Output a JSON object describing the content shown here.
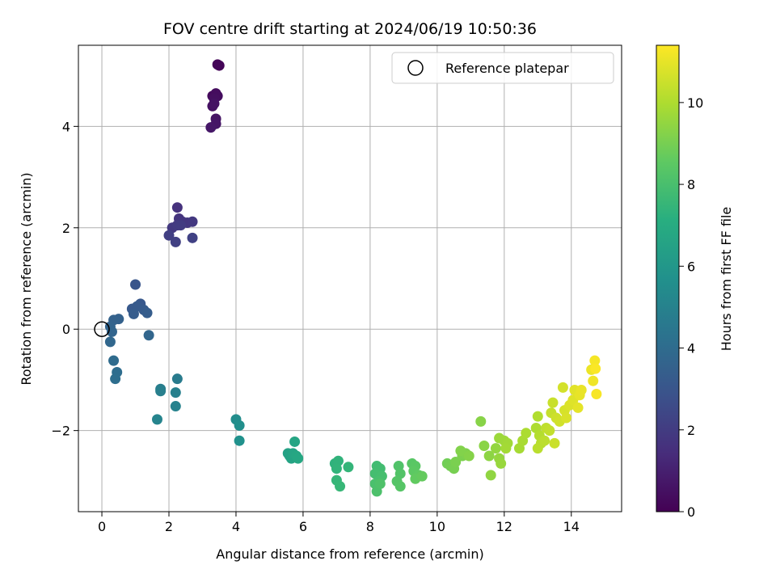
{
  "chart_data": {
    "type": "scatter",
    "title": "FOV centre drift starting at 2024/06/19 10:50:36",
    "xlabel": "Angular distance from reference (arcmin)",
    "ylabel": "Rotation from reference (arcmin)",
    "xlim": [
      -0.7,
      15.5
    ],
    "ylim": [
      -3.6,
      5.6
    ],
    "xticks": [
      0,
      2,
      4,
      6,
      8,
      10,
      12,
      14
    ],
    "xtick_labels": [
      "0",
      "2",
      "4",
      "6",
      "8",
      "10",
      "12",
      "14"
    ],
    "yticks": [
      -2,
      0,
      2,
      4
    ],
    "ytick_labels": [
      "−2",
      "0",
      "2",
      "4"
    ],
    "grid": true,
    "legend": {
      "placement": "top-right",
      "entries": [
        "Reference platepar"
      ]
    },
    "colormap": "viridis",
    "colorbar": {
      "label": "Hours from first FF file",
      "range": [
        0,
        11.4
      ],
      "ticks": [
        0,
        2,
        4,
        6,
        8,
        10
      ],
      "tick_labels": [
        "0",
        "2",
        "4",
        "6",
        "8",
        "10"
      ]
    },
    "reference_point": {
      "x": 0,
      "y": 0
    },
    "points": [
      {
        "x": 3.5,
        "y": 5.2,
        "c": 0.1
      },
      {
        "x": 3.45,
        "y": 5.22,
        "c": 0.15
      },
      {
        "x": 3.3,
        "y": 4.6,
        "c": 0.3
      },
      {
        "x": 3.4,
        "y": 4.65,
        "c": 0.35
      },
      {
        "x": 3.45,
        "y": 4.6,
        "c": 0.4
      },
      {
        "x": 3.35,
        "y": 4.55,
        "c": 0.45
      },
      {
        "x": 3.3,
        "y": 4.4,
        "c": 0.5
      },
      {
        "x": 3.35,
        "y": 4.45,
        "c": 0.55
      },
      {
        "x": 3.4,
        "y": 4.15,
        "c": 0.6
      },
      {
        "x": 3.4,
        "y": 4.05,
        "c": 0.65
      },
      {
        "x": 3.25,
        "y": 3.98,
        "c": 0.7
      },
      {
        "x": 2.25,
        "y": 2.4,
        "c": 1.6
      },
      {
        "x": 2.3,
        "y": 2.18,
        "c": 1.7
      },
      {
        "x": 2.4,
        "y": 2.12,
        "c": 1.75
      },
      {
        "x": 2.55,
        "y": 2.1,
        "c": 1.8
      },
      {
        "x": 2.7,
        "y": 2.12,
        "c": 1.85
      },
      {
        "x": 2.1,
        "y": 2.0,
        "c": 1.9
      },
      {
        "x": 2.25,
        "y": 2.05,
        "c": 1.95
      },
      {
        "x": 2.35,
        "y": 2.05,
        "c": 2.0
      },
      {
        "x": 2.0,
        "y": 1.85,
        "c": 2.1
      },
      {
        "x": 2.2,
        "y": 1.72,
        "c": 2.15
      },
      {
        "x": 2.7,
        "y": 1.8,
        "c": 2.2
      },
      {
        "x": 1.0,
        "y": 0.88,
        "c": 3.0
      },
      {
        "x": 1.15,
        "y": 0.5,
        "c": 3.1
      },
      {
        "x": 0.9,
        "y": 0.4,
        "c": 3.15
      },
      {
        "x": 1.05,
        "y": 0.45,
        "c": 3.2
      },
      {
        "x": 1.25,
        "y": 0.38,
        "c": 3.25
      },
      {
        "x": 0.95,
        "y": 0.3,
        "c": 3.3
      },
      {
        "x": 1.35,
        "y": 0.32,
        "c": 3.35
      },
      {
        "x": 0.5,
        "y": 0.2,
        "c": 3.5
      },
      {
        "x": 0.35,
        "y": 0.18,
        "c": 3.55
      },
      {
        "x": 0.25,
        "y": 0.05,
        "c": 3.65
      },
      {
        "x": 0.3,
        "y": -0.05,
        "c": 3.7
      },
      {
        "x": 1.4,
        "y": -0.12,
        "c": 3.75
      },
      {
        "x": 0.25,
        "y": -0.25,
        "c": 3.8
      },
      {
        "x": 0.35,
        "y": -0.62,
        "c": 3.95
      },
      {
        "x": 0.45,
        "y": -0.85,
        "c": 4.05
      },
      {
        "x": 0.4,
        "y": -0.98,
        "c": 4.1
      },
      {
        "x": 2.25,
        "y": -0.98,
        "c": 4.7
      },
      {
        "x": 1.75,
        "y": -1.18,
        "c": 4.8
      },
      {
        "x": 1.75,
        "y": -1.22,
        "c": 4.85
      },
      {
        "x": 2.2,
        "y": -1.25,
        "c": 4.9
      },
      {
        "x": 2.2,
        "y": -1.52,
        "c": 5.0
      },
      {
        "x": 1.65,
        "y": -1.78,
        "c": 5.1
      },
      {
        "x": 4.0,
        "y": -1.78,
        "c": 5.5
      },
      {
        "x": 4.1,
        "y": -1.9,
        "c": 5.6
      },
      {
        "x": 4.1,
        "y": -2.2,
        "c": 5.7
      },
      {
        "x": 5.55,
        "y": -2.45,
        "c": 6.5
      },
      {
        "x": 5.6,
        "y": -2.5,
        "c": 6.55
      },
      {
        "x": 5.65,
        "y": -2.55,
        "c": 6.6
      },
      {
        "x": 5.7,
        "y": -2.45,
        "c": 6.65
      },
      {
        "x": 5.75,
        "y": -2.22,
        "c": 6.7
      },
      {
        "x": 5.8,
        "y": -2.5,
        "c": 6.75
      },
      {
        "x": 5.85,
        "y": -2.55,
        "c": 6.8
      },
      {
        "x": 6.95,
        "y": -2.65,
        "c": 7.3
      },
      {
        "x": 7.05,
        "y": -2.6,
        "c": 7.35
      },
      {
        "x": 7.0,
        "y": -2.75,
        "c": 7.4
      },
      {
        "x": 7.35,
        "y": -2.72,
        "c": 7.45
      },
      {
        "x": 7.0,
        "y": -2.98,
        "c": 7.5
      },
      {
        "x": 7.1,
        "y": -3.1,
        "c": 7.55
      },
      {
        "x": 8.2,
        "y": -2.7,
        "c": 7.8
      },
      {
        "x": 8.3,
        "y": -2.75,
        "c": 7.85
      },
      {
        "x": 8.15,
        "y": -2.85,
        "c": 7.9
      },
      {
        "x": 8.35,
        "y": -2.9,
        "c": 7.95
      },
      {
        "x": 8.25,
        "y": -3.0,
        "c": 8.0
      },
      {
        "x": 8.15,
        "y": -3.05,
        "c": 8.05
      },
      {
        "x": 8.2,
        "y": -3.2,
        "c": 8.1
      },
      {
        "x": 8.3,
        "y": -3.05,
        "c": 8.15
      },
      {
        "x": 8.85,
        "y": -2.7,
        "c": 8.2
      },
      {
        "x": 8.9,
        "y": -2.85,
        "c": 8.25
      },
      {
        "x": 8.8,
        "y": -3.0,
        "c": 8.3
      },
      {
        "x": 8.9,
        "y": -3.1,
        "c": 8.35
      },
      {
        "x": 9.25,
        "y": -2.65,
        "c": 8.4
      },
      {
        "x": 9.35,
        "y": -2.7,
        "c": 8.45
      },
      {
        "x": 9.3,
        "y": -2.8,
        "c": 8.5
      },
      {
        "x": 9.45,
        "y": -2.88,
        "c": 8.55
      },
      {
        "x": 9.35,
        "y": -2.95,
        "c": 8.6
      },
      {
        "x": 9.55,
        "y": -2.9,
        "c": 8.65
      },
      {
        "x": 10.3,
        "y": -2.65,
        "c": 8.9
      },
      {
        "x": 10.4,
        "y": -2.7,
        "c": 8.95
      },
      {
        "x": 10.5,
        "y": -2.75,
        "c": 9.0
      },
      {
        "x": 10.55,
        "y": -2.62,
        "c": 9.05
      },
      {
        "x": 10.75,
        "y": -2.5,
        "c": 9.1
      },
      {
        "x": 10.85,
        "y": -2.45,
        "c": 9.15
      },
      {
        "x": 10.7,
        "y": -2.4,
        "c": 9.2
      },
      {
        "x": 10.95,
        "y": -2.5,
        "c": 9.25
      },
      {
        "x": 11.3,
        "y": -1.82,
        "c": 9.3
      },
      {
        "x": 11.4,
        "y": -2.3,
        "c": 9.35
      },
      {
        "x": 11.55,
        "y": -2.5,
        "c": 9.4
      },
      {
        "x": 11.6,
        "y": -2.88,
        "c": 9.45
      },
      {
        "x": 11.75,
        "y": -2.35,
        "c": 9.5
      },
      {
        "x": 11.85,
        "y": -2.55,
        "c": 9.55
      },
      {
        "x": 11.9,
        "y": -2.65,
        "c": 9.6
      },
      {
        "x": 11.85,
        "y": -2.15,
        "c": 9.65
      },
      {
        "x": 12.0,
        "y": -2.2,
        "c": 9.7
      },
      {
        "x": 12.1,
        "y": -2.25,
        "c": 9.75
      },
      {
        "x": 12.05,
        "y": -2.35,
        "c": 9.8
      },
      {
        "x": 12.45,
        "y": -2.35,
        "c": 9.85
      },
      {
        "x": 12.55,
        "y": -2.2,
        "c": 9.9
      },
      {
        "x": 12.65,
        "y": -2.05,
        "c": 9.95
      },
      {
        "x": 12.95,
        "y": -1.95,
        "c": 10.0
      },
      {
        "x": 13.0,
        "y": -1.72,
        "c": 10.05
      },
      {
        "x": 13.05,
        "y": -2.1,
        "c": 10.1
      },
      {
        "x": 13.1,
        "y": -2.25,
        "c": 10.15
      },
      {
        "x": 13.0,
        "y": -2.35,
        "c": 10.2
      },
      {
        "x": 13.2,
        "y": -2.2,
        "c": 10.25
      },
      {
        "x": 13.25,
        "y": -1.95,
        "c": 10.3
      },
      {
        "x": 13.35,
        "y": -2.0,
        "c": 10.35
      },
      {
        "x": 13.4,
        "y": -1.65,
        "c": 10.4
      },
      {
        "x": 13.45,
        "y": -1.45,
        "c": 10.45
      },
      {
        "x": 13.5,
        "y": -2.25,
        "c": 10.5
      },
      {
        "x": 13.55,
        "y": -1.75,
        "c": 10.55
      },
      {
        "x": 13.65,
        "y": -1.82,
        "c": 10.6
      },
      {
        "x": 13.75,
        "y": -1.15,
        "c": 10.65
      },
      {
        "x": 13.8,
        "y": -1.6,
        "c": 10.7
      },
      {
        "x": 13.85,
        "y": -1.75,
        "c": 10.75
      },
      {
        "x": 13.95,
        "y": -1.5,
        "c": 10.8
      },
      {
        "x": 14.05,
        "y": -1.4,
        "c": 10.85
      },
      {
        "x": 14.1,
        "y": -1.2,
        "c": 10.9
      },
      {
        "x": 14.2,
        "y": -1.55,
        "c": 10.95
      },
      {
        "x": 14.25,
        "y": -1.3,
        "c": 11.0
      },
      {
        "x": 14.3,
        "y": -1.2,
        "c": 11.05
      },
      {
        "x": 14.6,
        "y": -0.8,
        "c": 11.1
      },
      {
        "x": 14.65,
        "y": -1.02,
        "c": 11.15
      },
      {
        "x": 14.7,
        "y": -0.62,
        "c": 11.25
      },
      {
        "x": 14.75,
        "y": -1.28,
        "c": 11.3
      },
      {
        "x": 14.72,
        "y": -0.78,
        "c": 11.35
      }
    ]
  }
}
